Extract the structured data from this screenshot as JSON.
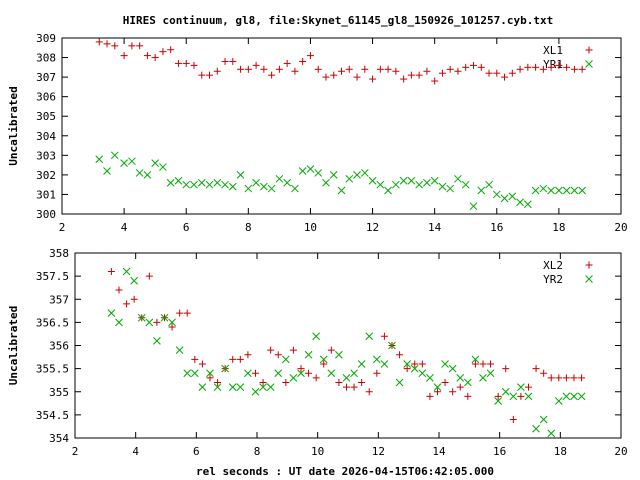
{
  "chart_data": [
    {
      "type": "scatter",
      "title": "HIRES continuum, gl8, file:Skynet_61145_gl8_150926_101257.cyb.txt",
      "xlabel": "",
      "ylabel": "Uncalibrated",
      "xlim": [
        2,
        20
      ],
      "ylim": [
        300,
        309
      ],
      "xticks": [
        "2",
        "4",
        "6",
        "8",
        "10",
        "12",
        "14",
        "16",
        "18",
        "20"
      ],
      "yticks": [
        "300",
        "301",
        "302",
        "303",
        "304",
        "305",
        "306",
        "307",
        "308",
        "309"
      ],
      "grid": false,
      "legend": "top-right",
      "series": [
        {
          "name": "XL1",
          "marker": "plus",
          "color": "#cc0000",
          "x": [
            3.2,
            3.45,
            3.7,
            4.0,
            4.25,
            4.5,
            4.75,
            5.0,
            5.25,
            5.5,
            5.75,
            6.0,
            6.25,
            6.5,
            6.75,
            7.0,
            7.25,
            7.5,
            7.75,
            8.0,
            8.25,
            8.5,
            8.75,
            9.0,
            9.25,
            9.5,
            9.75,
            10.0,
            10.25,
            10.5,
            10.75,
            11.0,
            11.25,
            11.5,
            11.75,
            12.0,
            12.25,
            12.5,
            12.75,
            13.0,
            13.25,
            13.5,
            13.75,
            14.0,
            14.25,
            14.5,
            14.75,
            15.0,
            15.25,
            15.5,
            15.75,
            16.0,
            16.25,
            16.5,
            16.75,
            17.0,
            17.25,
            17.5,
            17.75,
            18.0,
            18.25,
            18.5,
            18.75
          ],
          "y": [
            308.8,
            308.7,
            308.6,
            308.1,
            308.6,
            308.6,
            308.1,
            308.0,
            308.3,
            308.4,
            307.7,
            307.7,
            307.6,
            307.1,
            307.1,
            307.3,
            307.8,
            307.8,
            307.4,
            307.4,
            307.6,
            307.4,
            307.1,
            307.4,
            307.7,
            307.3,
            307.8,
            308.1,
            307.4,
            307.0,
            307.1,
            307.3,
            307.4,
            307.0,
            307.4,
            306.9,
            307.4,
            307.4,
            307.3,
            306.9,
            307.1,
            307.1,
            307.3,
            306.8,
            307.2,
            307.4,
            307.3,
            307.5,
            307.6,
            307.5,
            307.2,
            307.2,
            307.0,
            307.2,
            307.4,
            307.5,
            307.5,
            307.4,
            307.5,
            307.6,
            307.5,
            307.4,
            307.4
          ]
        },
        {
          "name": "YR1",
          "marker": "cross",
          "color": "#00aa00",
          "x": [
            3.2,
            3.45,
            3.7,
            4.0,
            4.25,
            4.5,
            4.75,
            5.0,
            5.25,
            5.5,
            5.75,
            6.0,
            6.25,
            6.5,
            6.75,
            7.0,
            7.25,
            7.5,
            7.75,
            8.0,
            8.25,
            8.5,
            8.75,
            9.0,
            9.25,
            9.5,
            9.75,
            10.0,
            10.25,
            10.5,
            10.75,
            11.0,
            11.25,
            11.5,
            11.75,
            12.0,
            12.25,
            12.5,
            12.75,
            13.0,
            13.25,
            13.5,
            13.75,
            14.0,
            14.25,
            14.5,
            14.75,
            15.0,
            15.25,
            15.5,
            15.75,
            16.0,
            16.25,
            16.5,
            16.75,
            17.0,
            17.25,
            17.5,
            17.75,
            18.0,
            18.25,
            18.5,
            18.75
          ],
          "y": [
            302.8,
            302.2,
            303.0,
            302.6,
            302.7,
            302.1,
            302.0,
            302.6,
            302.4,
            301.6,
            301.7,
            301.5,
            301.5,
            301.6,
            301.5,
            301.6,
            301.5,
            301.4,
            302.0,
            301.3,
            301.6,
            301.4,
            301.3,
            301.8,
            301.6,
            301.3,
            302.2,
            302.3,
            302.1,
            301.6,
            302.0,
            301.2,
            301.8,
            302.0,
            302.1,
            301.7,
            301.5,
            301.2,
            301.5,
            301.7,
            301.7,
            301.5,
            301.6,
            301.7,
            301.4,
            301.3,
            301.8,
            301.5,
            300.4,
            301.2,
            301.5,
            301.0,
            300.8,
            300.9,
            300.6,
            300.5,
            301.2,
            301.3,
            301.2,
            301.2,
            301.2,
            301.2,
            301.2
          ]
        }
      ]
    },
    {
      "type": "scatter",
      "title": "",
      "xlabel": "rel seconds : UT date 2026-04-15T06:42:05.000",
      "ylabel": "Uncalibrated",
      "xlim": [
        2,
        20
      ],
      "ylim": [
        354,
        358
      ],
      "xticks": [
        "2",
        "4",
        "6",
        "8",
        "10",
        "12",
        "14",
        "16",
        "18",
        "20"
      ],
      "yticks": [
        "354",
        "354.5",
        "355",
        "355.5",
        "356",
        "356.5",
        "357",
        "357.5",
        "358"
      ],
      "grid": false,
      "legend": "top-right",
      "series": [
        {
          "name": "XL2",
          "marker": "plus",
          "color": "#cc0000",
          "x": [
            3.2,
            3.45,
            3.7,
            3.95,
            4.2,
            4.45,
            4.7,
            4.95,
            5.2,
            5.45,
            5.7,
            5.95,
            6.2,
            6.45,
            6.7,
            6.95,
            7.2,
            7.45,
            7.7,
            7.95,
            8.2,
            8.45,
            8.7,
            8.95,
            9.2,
            9.45,
            9.7,
            9.95,
            10.2,
            10.45,
            10.7,
            10.95,
            11.2,
            11.45,
            11.7,
            11.95,
            12.2,
            12.45,
            12.7,
            12.95,
            13.2,
            13.45,
            13.7,
            13.95,
            14.2,
            14.45,
            14.7,
            14.95,
            15.2,
            15.45,
            15.7,
            15.95,
            16.2,
            16.45,
            16.7,
            16.95,
            17.2,
            17.45,
            17.7,
            17.95,
            18.2,
            18.45,
            18.7
          ],
          "y": [
            357.6,
            357.2,
            356.9,
            357.0,
            356.6,
            357.5,
            356.5,
            356.6,
            356.4,
            356.7,
            356.7,
            355.7,
            355.6,
            355.3,
            355.2,
            355.5,
            355.7,
            355.7,
            355.8,
            355.4,
            355.2,
            355.9,
            355.8,
            355.2,
            355.9,
            355.5,
            355.4,
            355.3,
            355.6,
            355.9,
            355.2,
            355.1,
            355.1,
            355.2,
            355.0,
            355.4,
            356.2,
            356.0,
            355.8,
            355.5,
            355.6,
            355.6,
            354.9,
            355.0,
            355.2,
            355.0,
            355.1,
            354.9,
            355.6,
            355.6,
            355.6,
            354.9,
            355.5,
            354.4,
            354.9,
            355.1,
            355.5,
            355.4,
            355.3,
            355.3,
            355.3,
            355.3,
            355.3
          ]
        },
        {
          "name": "YR2",
          "marker": "cross",
          "color": "#00aa00",
          "x": [
            3.2,
            3.45,
            3.7,
            3.95,
            4.2,
            4.45,
            4.7,
            4.95,
            5.2,
            5.45,
            5.7,
            5.95,
            6.2,
            6.45,
            6.7,
            6.95,
            7.2,
            7.45,
            7.7,
            7.95,
            8.2,
            8.45,
            8.7,
            8.95,
            9.2,
            9.45,
            9.7,
            9.95,
            10.2,
            10.45,
            10.7,
            10.95,
            11.2,
            11.45,
            11.7,
            11.95,
            12.2,
            12.45,
            12.7,
            12.95,
            13.2,
            13.45,
            13.7,
            13.95,
            14.2,
            14.45,
            14.7,
            14.95,
            15.2,
            15.45,
            15.7,
            15.95,
            16.2,
            16.45,
            16.7,
            16.95,
            17.2,
            17.45,
            17.7,
            17.95,
            18.2,
            18.45,
            18.7
          ],
          "y": [
            356.7,
            356.5,
            357.6,
            357.4,
            356.6,
            356.5,
            356.1,
            356.6,
            356.5,
            355.9,
            355.4,
            355.4,
            355.1,
            355.4,
            355.1,
            355.5,
            355.1,
            355.1,
            355.4,
            355.0,
            355.1,
            355.1,
            355.4,
            355.7,
            355.3,
            355.4,
            355.8,
            356.2,
            355.7,
            355.4,
            355.8,
            355.3,
            355.4,
            355.6,
            356.2,
            355.7,
            355.6,
            356.0,
            355.2,
            355.6,
            355.5,
            355.4,
            355.3,
            355.1,
            355.6,
            355.5,
            355.3,
            355.2,
            355.7,
            355.3,
            355.4,
            354.8,
            355.0,
            354.9,
            355.1,
            354.9,
            354.2,
            354.4,
            354.1,
            354.8,
            354.9,
            354.9,
            354.9
          ]
        }
      ]
    }
  ]
}
